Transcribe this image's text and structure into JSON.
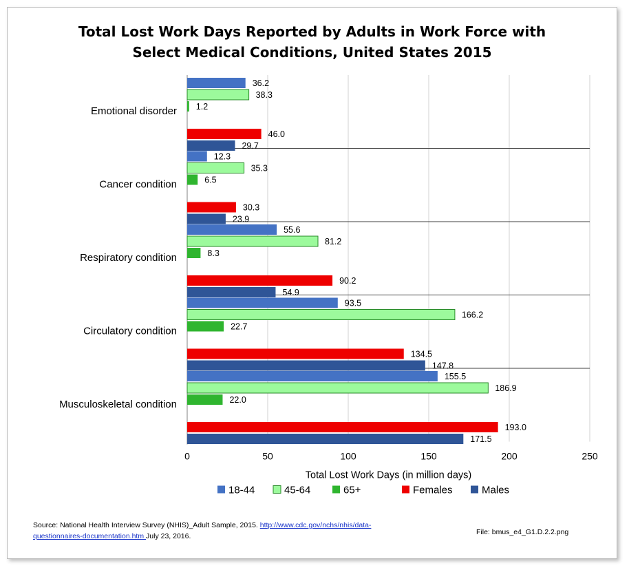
{
  "title_lines": [
    "Total Lost Work Days Reported by Adults in Work Force with",
    "Select Medical Conditions, United States 2015"
  ],
  "chart_data": {
    "type": "bar",
    "orientation": "horizontal",
    "title": "Total Lost Work Days Reported by Adults in Work Force with Select Medical Conditions, United States 2015",
    "xlabel": "Total Lost Work Days (in million days)",
    "ylabel": "",
    "xlim": [
      0,
      250
    ],
    "x_ticks": [
      "0",
      "50",
      "100",
      "150",
      "200",
      "250"
    ],
    "grid": "vertical",
    "legend_position": "bottom",
    "categories": [
      "Emotional disorder",
      "Cancer condition",
      "Respiratory condition",
      "Circulatory condition",
      "Musculoskeletal condition"
    ],
    "series": [
      {
        "name": "18-44",
        "color": "#4472c4",
        "values": [
          36.2,
          12.3,
          55.6,
          93.5,
          155.5
        ],
        "labels": [
          "36.2",
          "12.3",
          "55.6",
          "93.5",
          "155.5"
        ]
      },
      {
        "name": "45-64",
        "color": "#9cfa9c",
        "values": [
          38.3,
          35.3,
          81.2,
          166.2,
          186.9
        ],
        "labels": [
          "38.3",
          "35.3",
          "81.2",
          "166.2",
          "186.9"
        ]
      },
      {
        "name": "65+",
        "color": "#2fb52f",
        "values": [
          1.2,
          6.5,
          8.3,
          22.7,
          22.0
        ],
        "labels": [
          "1.2",
          "6.5",
          "8.3",
          "22.7",
          "22.0"
        ]
      },
      {
        "name": "Females",
        "color": "#ee0000",
        "values": [
          46.0,
          30.3,
          90.2,
          134.5,
          193.0
        ],
        "labels": [
          "46.0",
          "30.3",
          "90.2",
          "134.5",
          "193.0"
        ]
      },
      {
        "name": "Males",
        "color": "#2f5597",
        "values": [
          29.7,
          23.9,
          54.9,
          147.8,
          171.5
        ],
        "labels": [
          "29.7",
          "23.9",
          "54.9",
          "147.8",
          "171.5"
        ]
      }
    ]
  },
  "footer": {
    "source_prefix": "Source: National Health Interview Survey (NHIS)_Adult Sample, 2015.  ",
    "link_part1": "http://www.cdc.gov/nchs/nhis/data-",
    "link_part2": "questionnaires-documentation.htm ",
    "date": " July 23, 2016.",
    "file": "File: bmus_e4_G1.D.2.2.png"
  }
}
